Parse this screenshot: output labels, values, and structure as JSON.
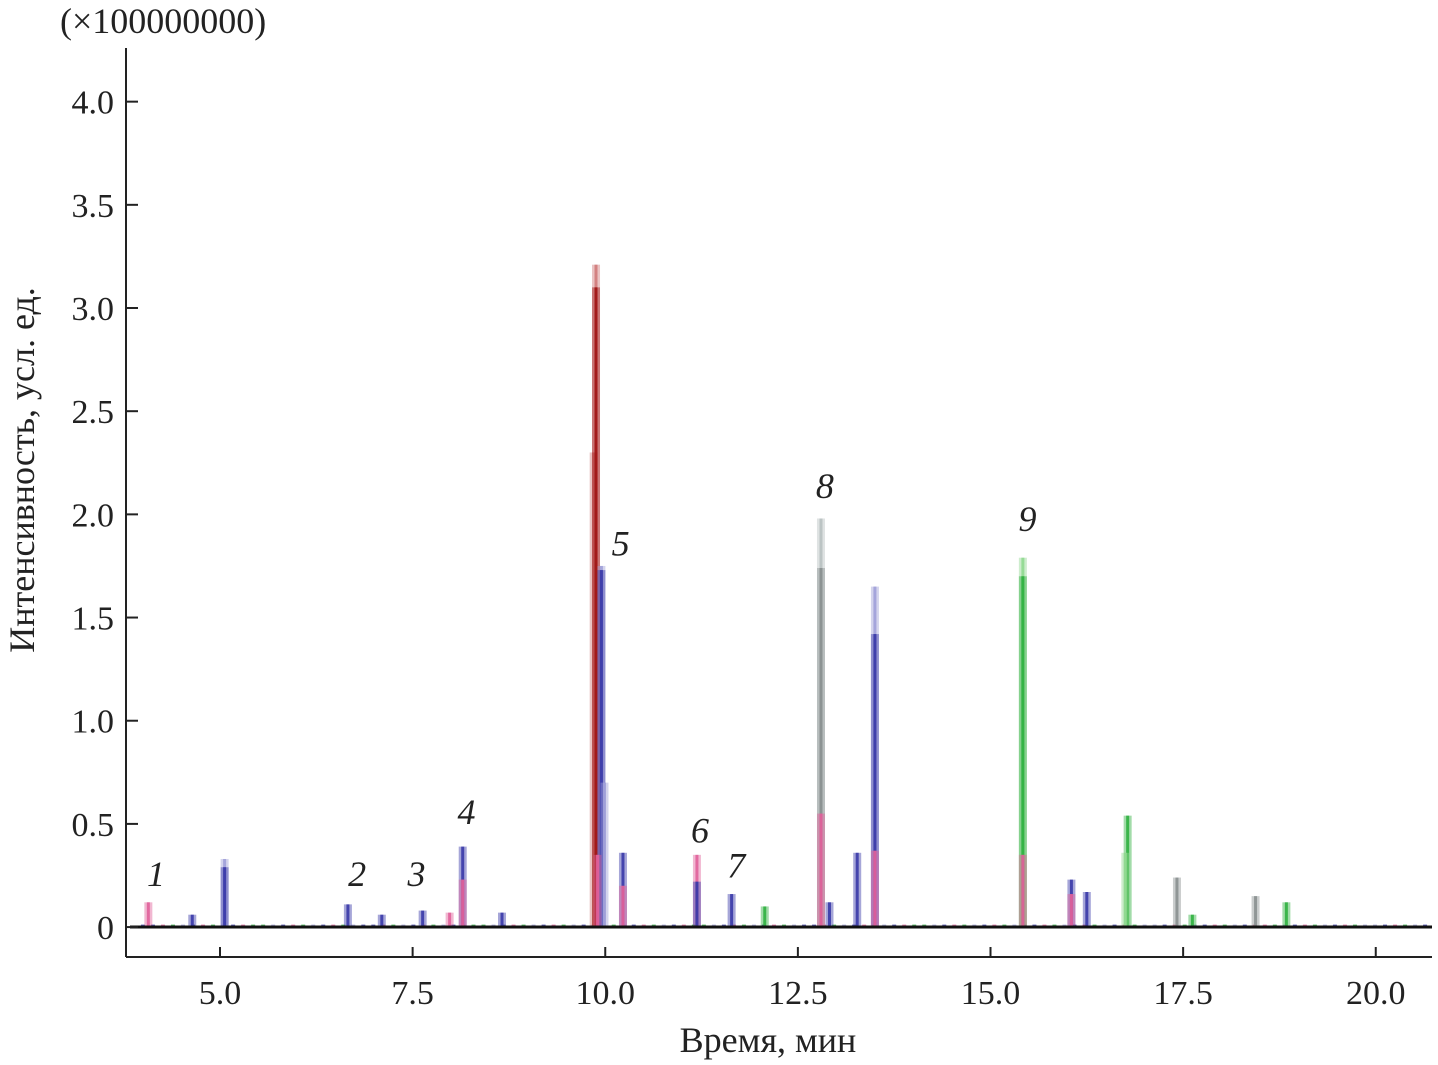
{
  "chart_data": {
    "type": "line",
    "title": "",
    "multiplier_label": "(×100000000)",
    "xlabel": "Время, мин",
    "ylabel": "Интенсивность, усл. ед.",
    "xlim": [
      3.78,
      20.73
    ],
    "ylim": [
      -0.145,
      4.26
    ],
    "x_ticks": [
      "5.0",
      "7.5",
      "10.0",
      "12.5",
      "15.0",
      "17.5",
      "20.0"
    ],
    "x_tick_values": [
      5.0,
      7.5,
      10.0,
      12.5,
      15.0,
      17.5,
      20.0
    ],
    "y_ticks": [
      "0",
      "0.5",
      "1.0",
      "1.5",
      "2.0",
      "2.5",
      "3.0",
      "3.5",
      "4.0"
    ],
    "y_tick_values": [
      0,
      0.5,
      1.0,
      1.5,
      2.0,
      2.5,
      3.0,
      3.5,
      4.0
    ],
    "grid": false,
    "series_colors": {
      "pink": "#e0609a",
      "navy": "#3a3aa8",
      "lightblue": "#a0a0d8",
      "darkred": "#a01414",
      "salmon": "#d07a7a",
      "gray": "#b8c0c0",
      "darkgray": "#8a9090",
      "green": "#30b040",
      "lightgreen": "#90d890"
    },
    "peaks": [
      {
        "t": 4.07,
        "h": 0.12,
        "c": "pink"
      },
      {
        "t": 4.64,
        "h": 0.06,
        "c": "navy"
      },
      {
        "t": 5.06,
        "h": 0.33,
        "c": "lightblue"
      },
      {
        "t": 5.06,
        "h": 0.29,
        "c": "navy"
      },
      {
        "t": 6.66,
        "h": 0.11,
        "c": "navy"
      },
      {
        "t": 7.1,
        "h": 0.06,
        "c": "navy"
      },
      {
        "t": 7.63,
        "h": 0.08,
        "c": "navy"
      },
      {
        "t": 7.98,
        "h": 0.07,
        "c": "pink"
      },
      {
        "t": 8.15,
        "h": 0.39,
        "c": "navy"
      },
      {
        "t": 8.15,
        "h": 0.23,
        "c": "pink"
      },
      {
        "t": 8.66,
        "h": 0.07,
        "c": "navy"
      },
      {
        "t": 9.85,
        "h": 2.3,
        "c": "salmon"
      },
      {
        "t": 9.88,
        "h": 3.21,
        "c": "salmon"
      },
      {
        "t": 9.88,
        "h": 3.1,
        "c": "darkred"
      },
      {
        "t": 9.95,
        "h": 1.75,
        "c": "lightblue"
      },
      {
        "t": 9.95,
        "h": 1.73,
        "c": "navy"
      },
      {
        "t": 9.99,
        "h": 0.7,
        "c": "lightblue"
      },
      {
        "t": 9.9,
        "h": 0.35,
        "c": "pink"
      },
      {
        "t": 10.23,
        "h": 0.36,
        "c": "navy"
      },
      {
        "t": 10.23,
        "h": 0.2,
        "c": "pink"
      },
      {
        "t": 11.19,
        "h": 0.35,
        "c": "pink"
      },
      {
        "t": 11.19,
        "h": 0.22,
        "c": "navy"
      },
      {
        "t": 11.64,
        "h": 0.16,
        "c": "navy"
      },
      {
        "t": 12.07,
        "h": 0.1,
        "c": "green"
      },
      {
        "t": 12.8,
        "h": 1.98,
        "c": "gray"
      },
      {
        "t": 12.8,
        "h": 1.74,
        "c": "darkgray"
      },
      {
        "t": 12.8,
        "h": 0.55,
        "c": "pink"
      },
      {
        "t": 12.91,
        "h": 0.12,
        "c": "navy"
      },
      {
        "t": 13.27,
        "h": 0.36,
        "c": "navy"
      },
      {
        "t": 13.5,
        "h": 1.65,
        "c": "lightblue"
      },
      {
        "t": 13.5,
        "h": 1.42,
        "c": "navy"
      },
      {
        "t": 13.5,
        "h": 0.37,
        "c": "pink"
      },
      {
        "t": 15.42,
        "h": 1.79,
        "c": "lightgreen"
      },
      {
        "t": 15.42,
        "h": 1.7,
        "c": "green"
      },
      {
        "t": 15.42,
        "h": 0.35,
        "c": "pink"
      },
      {
        "t": 16.05,
        "h": 0.23,
        "c": "navy"
      },
      {
        "t": 16.05,
        "h": 0.16,
        "c": "pink"
      },
      {
        "t": 16.25,
        "h": 0.17,
        "c": "navy"
      },
      {
        "t": 16.78,
        "h": 0.54,
        "c": "green"
      },
      {
        "t": 16.75,
        "h": 0.36,
        "c": "lightgreen"
      },
      {
        "t": 17.42,
        "h": 0.24,
        "c": "darkgray"
      },
      {
        "t": 17.62,
        "h": 0.06,
        "c": "green"
      },
      {
        "t": 18.44,
        "h": 0.15,
        "c": "darkgray"
      },
      {
        "t": 18.84,
        "h": 0.12,
        "c": "green"
      }
    ],
    "annotations": [
      {
        "text": "1",
        "t": 4.17,
        "y": 0.2
      },
      {
        "text": "2",
        "t": 6.78,
        "y": 0.2
      },
      {
        "text": "3",
        "t": 7.55,
        "y": 0.2
      },
      {
        "text": "4",
        "t": 8.2,
        "y": 0.5
      },
      {
        "text": "5",
        "t": 10.2,
        "y": 1.8
      },
      {
        "text": "6",
        "t": 11.23,
        "y": 0.41
      },
      {
        "text": "7",
        "t": 11.7,
        "y": 0.24
      },
      {
        "text": "8",
        "t": 12.85,
        "y": 2.08
      },
      {
        "text": "9",
        "t": 15.48,
        "y": 1.92
      }
    ]
  }
}
